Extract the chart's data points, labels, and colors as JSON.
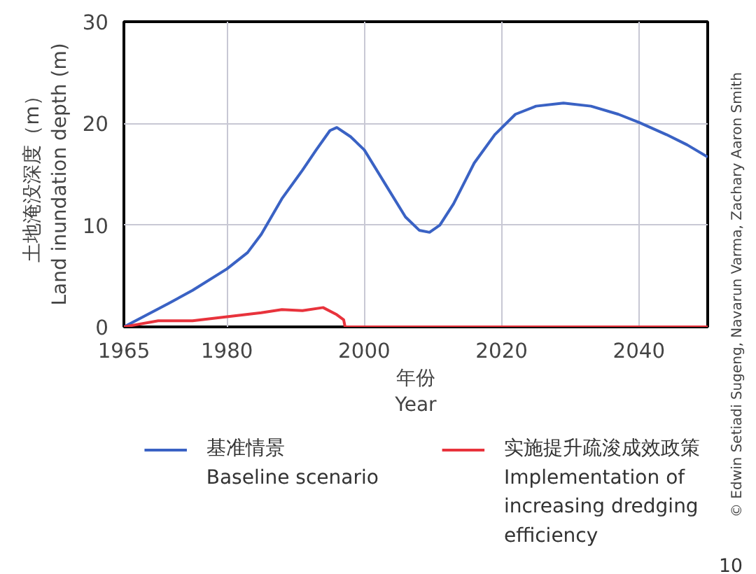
{
  "chart_data": {
    "type": "line",
    "xlabel": "年份\nYear",
    "ylabel": "土地淹没深度（m）\nLand inundation depth (m)",
    "xlim": [
      1965,
      2050
    ],
    "xticks": [
      1965,
      1980,
      2000,
      2020,
      2040
    ],
    "ylim": [
      0,
      30
    ],
    "yticks": [
      0,
      10,
      20,
      30
    ],
    "grid": true,
    "legend": "bottom",
    "line_style": "solid",
    "marker": "none",
    "annotations": [
      "© Edwin Setiadi Sugeng, Navarun Varma, Zachary Aaron Smith",
      "10"
    ],
    "series": [
      {
        "name": "基准情景\nBaseline scenario",
        "color": "#3a62c4",
        "x": [
          1965,
          1971.5,
          1975,
          1980,
          1983,
          1985,
          1988,
          1991,
          1993,
          1995,
          1996,
          1998,
          2000,
          2003,
          2006,
          2008,
          2009.5,
          2011,
          2013,
          2016,
          2019,
          2022,
          2025,
          2029,
          2033,
          2037,
          2040,
          2044,
          2047,
          2050
        ],
        "values": [
          0,
          2.3,
          3.6,
          5.7,
          7.3,
          9.1,
          12.6,
          15.4,
          17.4,
          19.3,
          19.6,
          18.7,
          17.4,
          14.1,
          10.8,
          9.5,
          9.3,
          10.0,
          12.1,
          16.1,
          18.9,
          20.9,
          21.7,
          22.0,
          21.7,
          20.9,
          20.1,
          18.9,
          17.9,
          16.7
        ]
      },
      {
        "name": "实施提升疏浚成效政策\nImplementation of\nincreasing dredging\nefficiency",
        "color": "#e8333c",
        "x": [
          1965,
          1970,
          1975,
          1980,
          1985,
          1988,
          1991,
          1994,
          1996,
          1997,
          1997.2,
          2050
        ],
        "values": [
          0,
          0.6,
          0.6,
          1.0,
          1.4,
          1.7,
          1.6,
          1.9,
          1.2,
          0.7,
          0,
          0
        ]
      }
    ]
  }
}
